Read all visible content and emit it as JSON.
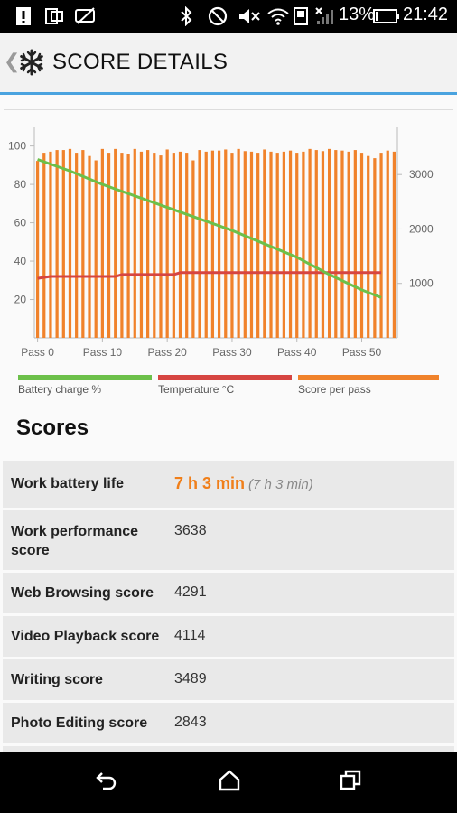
{
  "status_bar": {
    "battery_percent": "13%",
    "time": "21:42"
  },
  "header": {
    "title": "SCORE DETAILS"
  },
  "chart_data": {
    "type": "bar",
    "x_tick_labels": [
      "Pass 0",
      "Pass 10",
      "Pass 20",
      "Pass 30",
      "Pass 40",
      "Pass 50"
    ],
    "y_left_ticks": [
      20,
      40,
      60,
      80,
      100
    ],
    "y_left_range": [
      0,
      105
    ],
    "y_right_ticks": [
      1000,
      2000,
      3000
    ],
    "y_right_range": [
      0,
      3700
    ],
    "grid": false,
    "legend": [
      {
        "label": "Battery charge %",
        "color": "#6cc04a"
      },
      {
        "label": "Temperature °C",
        "color": "#d64541"
      },
      {
        "label": "Score per pass",
        "color": "#f0822b"
      }
    ],
    "series": [
      {
        "name": "Score per pass",
        "axis": "right",
        "values": [
          3250,
          3400,
          3420,
          3450,
          3450,
          3470,
          3400,
          3450,
          3340,
          3260,
          3470,
          3400,
          3470,
          3400,
          3380,
          3470,
          3420,
          3450,
          3400,
          3350,
          3460,
          3400,
          3420,
          3400,
          3260,
          3450,
          3420,
          3440,
          3440,
          3460,
          3400,
          3470,
          3430,
          3420,
          3400,
          3460,
          3420,
          3400,
          3420,
          3440,
          3400,
          3420,
          3470,
          3450,
          3430,
          3470,
          3450,
          3440,
          3420,
          3450,
          3400,
          3340,
          3300,
          3400,
          3440,
          3420
        ]
      },
      {
        "name": "Battery charge %",
        "axis": "left",
        "points": [
          [
            0,
            93
          ],
          [
            5,
            87
          ],
          [
            10,
            80
          ],
          [
            15,
            74
          ],
          [
            20,
            68
          ],
          [
            25,
            62
          ],
          [
            30,
            56
          ],
          [
            35,
            49
          ],
          [
            40,
            42
          ],
          [
            45,
            33
          ],
          [
            50,
            25
          ],
          [
            53,
            21
          ]
        ]
      },
      {
        "name": "Temperature °C",
        "axis": "left",
        "points": [
          [
            0,
            31
          ],
          [
            2,
            32
          ],
          [
            12,
            32
          ],
          [
            13,
            33
          ],
          [
            21,
            33
          ],
          [
            22,
            34
          ],
          [
            53,
            34
          ]
        ]
      }
    ]
  },
  "scores": {
    "heading": "Scores",
    "rows": [
      {
        "name": "Work battery life",
        "value": "7 h 3 min",
        "sub": "(7 h 3 min)"
      },
      {
        "name": "Work performance score",
        "value": "3638"
      },
      {
        "name": "Web Browsing score",
        "value": "4291"
      },
      {
        "name": "Video Playback score",
        "value": "4114"
      },
      {
        "name": "Writing score",
        "value": "3489"
      },
      {
        "name": "Photo Editing score",
        "value": "2843"
      }
    ]
  }
}
